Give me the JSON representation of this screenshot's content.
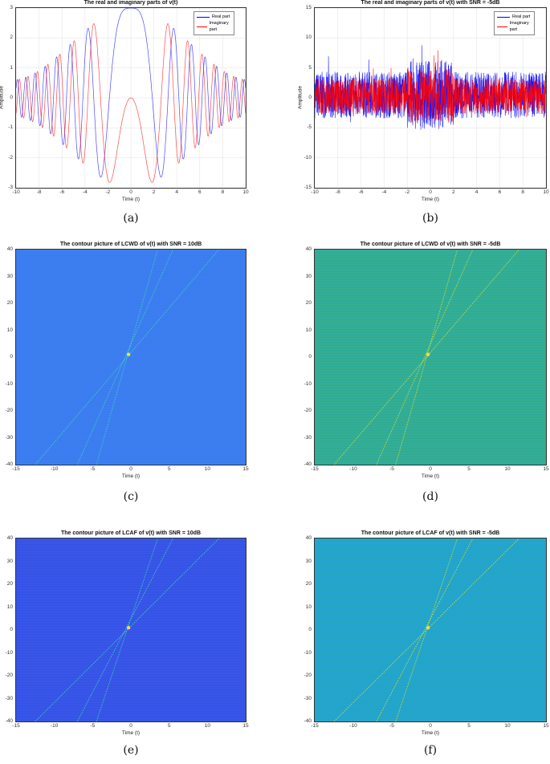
{
  "chart_data": [
    {
      "id": "a",
      "type": "line",
      "title": "The real and imaginary parts of v(t)",
      "xlabel": "Time (t)",
      "ylabel": "Amplitude",
      "xlim": [
        -10,
        10
      ],
      "ylim": [
        -3,
        3
      ],
      "xticks": [
        -10,
        -8,
        -6,
        -4,
        -2,
        0,
        2,
        4,
        6,
        8,
        10
      ],
      "yticks": [
        3,
        2,
        1,
        0,
        -1,
        -2,
        -3
      ],
      "grid": true,
      "legend": {
        "position": "upper right",
        "entries": [
          "Real part",
          "Imaginary part"
        ]
      },
      "series": [
        {
          "name": "Real part",
          "color": "#0000ff"
        },
        {
          "name": "Imaginary part",
          "color": "#ff0000"
        }
      ],
      "caption": "(a)"
    },
    {
      "id": "b",
      "type": "line",
      "title": "The real and imaginary parts of v(t) with SNR = -5dB",
      "xlabel": "Time (t)",
      "ylabel": "Amplitude",
      "xlim": [
        -10,
        10
      ],
      "ylim": [
        -15,
        15
      ],
      "xticks": [
        -10,
        -8,
        -6,
        -4,
        -2,
        0,
        2,
        4,
        6,
        8,
        10
      ],
      "yticks": [
        15,
        10,
        5,
        0,
        -5,
        -10,
        -15
      ],
      "grid": true,
      "legend": {
        "position": "upper right",
        "entries": [
          "Real part",
          "Imaginary part"
        ]
      },
      "series": [
        {
          "name": "Real part",
          "color": "#0000ff"
        },
        {
          "name": "Imaginary part",
          "color": "#ff0000"
        }
      ],
      "caption": "(b)"
    },
    {
      "id": "c",
      "type": "heatmap",
      "title": "The contour picture of LCWD of v(t) with SNR = 10dB",
      "xlabel": "Time (t)",
      "ylabel": "",
      "xlim": [
        -15,
        15
      ],
      "ylim": [
        -40,
        40
      ],
      "xticks": [
        -15,
        -10,
        -5,
        0,
        5,
        10,
        15
      ],
      "yticks": [
        40,
        30,
        20,
        10,
        0,
        -10,
        -20,
        -30,
        -40
      ],
      "background": "#3a7cf0",
      "caption": "(c)"
    },
    {
      "id": "d",
      "type": "heatmap",
      "title": "The contour picture of LCWD of v(t) with SNR = -5dB",
      "xlabel": "Time (t)",
      "ylabel": "",
      "xlim": [
        -15,
        15
      ],
      "ylim": [
        -40,
        40
      ],
      "xticks": [
        -15,
        -10,
        -5,
        0,
        5,
        10,
        15
      ],
      "yticks": [
        40,
        30,
        20,
        10,
        0,
        -10,
        -20,
        -30,
        -40
      ],
      "background": "#2aaa9a",
      "caption": "(d)"
    },
    {
      "id": "e",
      "type": "heatmap",
      "title": "The contour picture of LCAF of v(t) with SNR = 10dB",
      "xlabel": "Time (t)",
      "ylabel": "",
      "xlim": [
        -15,
        15
      ],
      "ylim": [
        -40,
        40
      ],
      "xticks": [
        -15,
        -10,
        -5,
        0,
        5,
        10,
        15
      ],
      "yticks": [
        40,
        30,
        20,
        10,
        0,
        -10,
        -20,
        -30,
        -40
      ],
      "background": "#3550e6",
      "caption": "(e)"
    },
    {
      "id": "f",
      "type": "heatmap",
      "title": "The contour picture of LCAF of v(t) with SNR = -5dB",
      "xlabel": "Time (t)",
      "ylabel": "",
      "xlim": [
        -15,
        15
      ],
      "ylim": [
        -40,
        40
      ],
      "xticks": [
        -15,
        -10,
        -5,
        0,
        5,
        10,
        15
      ],
      "yticks": [
        40,
        30,
        20,
        10,
        0,
        -10,
        -20,
        -30,
        -40
      ],
      "background": "#1fa3d0",
      "caption": "(f)"
    }
  ]
}
